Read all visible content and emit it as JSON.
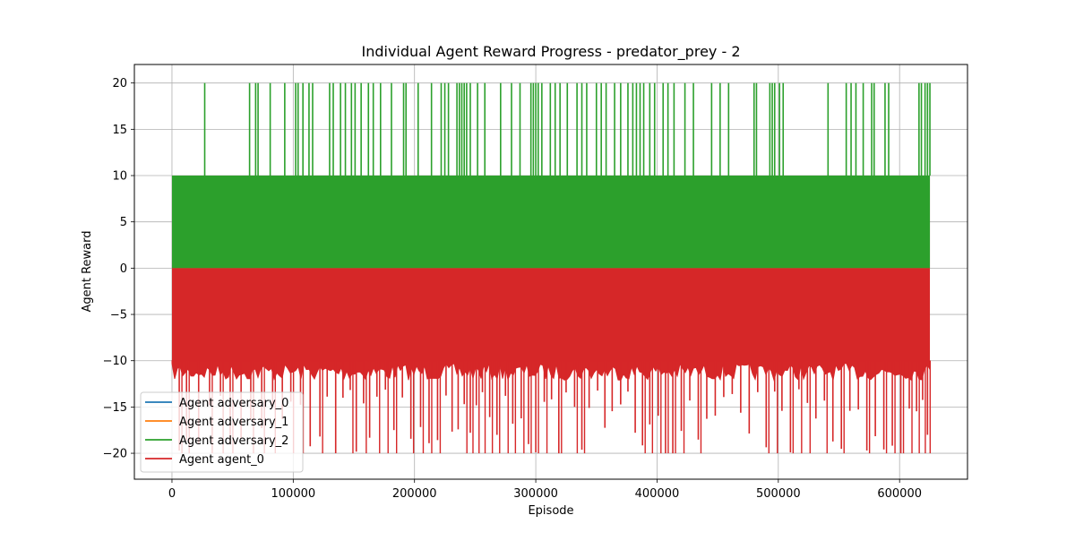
{
  "chart_data": {
    "type": "line",
    "title": "Individual Agent Reward Progress - predator_prey - 2",
    "xlabel": "Episode",
    "ylabel": "Agent Reward",
    "xlim": [
      -31000,
      656000
    ],
    "ylim": [
      -22.8,
      22
    ],
    "grid": true,
    "legend_position": "lower-left",
    "x_ticks": [
      0,
      100000,
      200000,
      300000,
      400000,
      500000,
      600000
    ],
    "x_tick_labels": [
      "0",
      "100000",
      "200000",
      "300000",
      "400000",
      "500000",
      "600000"
    ],
    "y_ticks": [
      -20,
      -15,
      -10,
      -5,
      0,
      5,
      10,
      15,
      20
    ],
    "y_tick_labels": [
      "−20",
      "−15",
      "−10",
      "−5",
      "0",
      "5",
      "10",
      "15",
      "20"
    ],
    "x_range": [
      0,
      625000
    ],
    "series": [
      {
        "name": "Agent adversary_0",
        "color": "#1f77b4",
        "band": [
          0,
          10
        ],
        "spikes": []
      },
      {
        "name": "Agent adversary_1",
        "color": "#ff7f0e",
        "band": [
          0,
          10
        ],
        "spikes": []
      },
      {
        "name": "Agent adversary_2",
        "color": "#2ca02c",
        "band": [
          0,
          10
        ],
        "spikes_note": "episodes with reward 20",
        "spikes": [
          27000,
          64000,
          69000,
          71000,
          81000,
          93000,
          102000,
          104000,
          108000,
          113000,
          116000,
          130000,
          133000,
          139000,
          143000,
          148000,
          151000,
          156000,
          162000,
          166000,
          172000,
          181000,
          191000,
          193000,
          203000,
          214000,
          222000,
          225000,
          228000,
          235000,
          237000,
          239000,
          241000,
          243000,
          246000,
          252000,
          258000,
          271000,
          280000,
          287000,
          296000,
          298000,
          300000,
          302000,
          305000,
          312000,
          316000,
          320000,
          326000,
          334000,
          338000,
          342000,
          350000,
          354000,
          358000,
          365000,
          370000,
          376000,
          380000,
          383000,
          386000,
          389000,
          394000,
          398000,
          405000,
          409000,
          414000,
          423000,
          430000,
          445000,
          452000,
          459000,
          480000,
          482000,
          493000,
          495000,
          497000,
          501000,
          504000,
          541000,
          556000,
          560000,
          564000,
          570000,
          577000,
          579000,
          588000,
          591000,
          616000,
          618000,
          621000,
          623000,
          625000
        ]
      },
      {
        "name": "Agent agent_0",
        "color": "#d62728",
        "band": [
          -10,
          0
        ],
        "spikes_note": "episodes with reward near -20",
        "spikes": [
          6000,
          12000,
          22000,
          31000,
          40000,
          48000,
          57000,
          65000,
          74000,
          83000,
          91000,
          98000,
          106000,
          114000,
          122000,
          128000,
          135000,
          141000,
          147000,
          152000,
          158000,
          163000,
          169000,
          176000,
          183000,
          190000,
          197000,
          205000,
          212000,
          219000,
          226000,
          231000,
          236000,
          241000,
          246000,
          251000,
          256000,
          262000,
          268000,
          275000,
          281000,
          288000,
          294000,
          300000,
          307000,
          313000,
          319000,
          325000,
          332000,
          338000,
          344000,
          351000,
          357000,
          363000,
          370000,
          376000,
          382000,
          388000,
          394000,
          401000,
          407000,
          413000,
          420000,
          427000,
          434000,
          441000,
          448000,
          455000,
          462000,
          469000,
          476000,
          483000,
          490000,
          497000,
          503000,
          510000,
          517000,
          524000,
          531000,
          538000,
          545000,
          552000,
          559000,
          566000,
          573000,
          580000,
          587000,
          594000,
          601000,
          608000,
          614000,
          619000,
          623000
        ]
      }
    ]
  }
}
